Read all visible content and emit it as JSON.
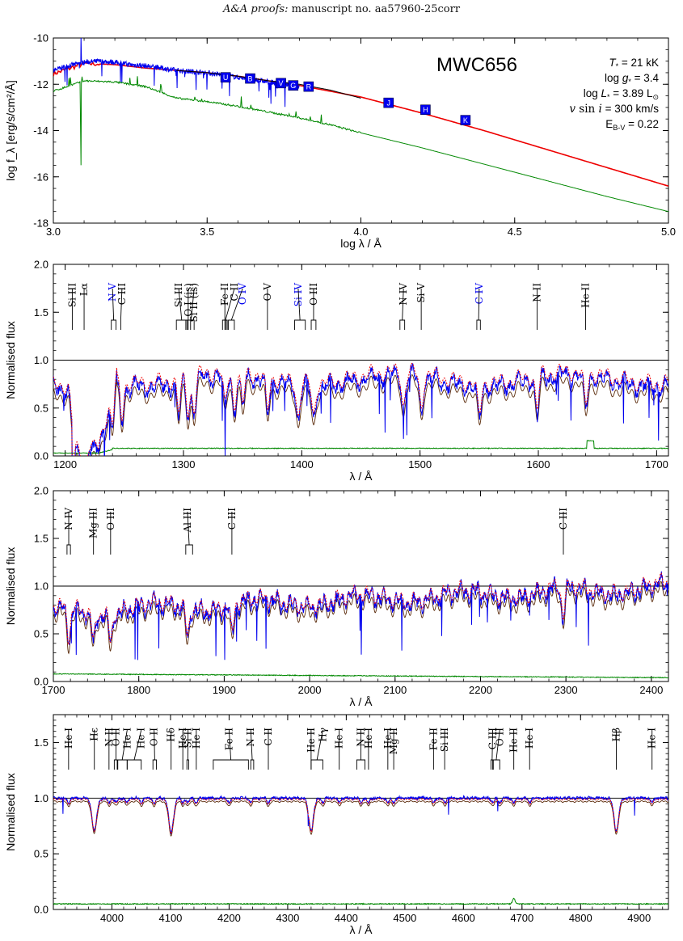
{
  "header": {
    "journal": "A&A proofs:",
    "manuscript": "manuscript no. aa57960-25corr"
  },
  "colors": {
    "observed": "#0000ee",
    "model": "#ee0000",
    "model_dotted": "#ee0000",
    "companion_or_alt": "#5a2a0a",
    "diff": "#008800",
    "black": "#000000"
  },
  "sed_panel": {
    "star": "MWC656",
    "params": [
      {
        "name": "T",
        "sub": "*",
        "value": " = 21 kK"
      },
      {
        "name": "log g",
        "sub": "*",
        "value": " = 3.4"
      },
      {
        "name": "log L",
        "sub": "*",
        "value": " = 3.89 L"
      },
      {
        "name": "v sin i",
        "sub": "",
        "value": " = 300 km/s"
      },
      {
        "name": "E",
        "sub": "B-V",
        "value": " = 0.22"
      }
    ]
  },
  "chart_data": [
    {
      "type": "line",
      "id": "sed",
      "xlabel": "log λ / Å",
      "ylabel": "log f_λ [erg/s/cm²/Å]",
      "xlim": [
        3.0,
        5.0
      ],
      "ylim": [
        -18,
        -10
      ],
      "xticks": [
        "3.0",
        "3.5",
        "4.0",
        "4.5",
        "5.0"
      ],
      "yticks": [
        "-18",
        "-16",
        "-14",
        "-12",
        "-10"
      ],
      "series": [
        {
          "color": "red",
          "x": [
            3.0,
            3.1,
            3.2,
            3.3,
            3.4,
            3.5,
            3.6,
            3.7,
            3.8,
            3.9,
            4.0,
            4.2,
            4.4,
            4.6,
            4.8,
            5.0
          ],
          "y": [
            -11.55,
            -11.1,
            -11.15,
            -11.3,
            -11.4,
            -11.5,
            -11.65,
            -11.85,
            -12.05,
            -12.3,
            -12.55,
            -13.25,
            -14.0,
            -14.8,
            -15.6,
            -16.4
          ]
        },
        {
          "color": "blue",
          "x": [
            3.0,
            3.05,
            3.1,
            3.15,
            3.2,
            3.25,
            3.3,
            3.35,
            3.4,
            3.45,
            3.5,
            3.55,
            3.6,
            3.65,
            3.7,
            3.75,
            3.8
          ],
          "y": [
            -11.4,
            -11.2,
            -11.05,
            -11.0,
            -11.05,
            -11.15,
            -11.2,
            -11.3,
            -11.4,
            -11.45,
            -11.5,
            -11.6,
            -11.7,
            -11.8,
            -11.9,
            -12.0,
            -12.1
          ]
        },
        {
          "color": "black",
          "x": [
            3.4,
            3.5,
            3.6,
            3.7,
            3.8,
            3.9,
            4.0
          ],
          "y": [
            -11.4,
            -11.5,
            -11.65,
            -11.85,
            -12.0,
            -12.25,
            -12.6
          ]
        },
        {
          "color": "green",
          "x": [
            3.0,
            3.1,
            3.2,
            3.3,
            3.4,
            3.5,
            3.6,
            3.7,
            3.8,
            3.9,
            4.0,
            4.2,
            4.4,
            4.6,
            4.8,
            5.0
          ],
          "y": [
            -12.3,
            -11.85,
            -11.9,
            -12.1,
            -12.6,
            -12.75,
            -12.95,
            -13.2,
            -13.45,
            -13.75,
            -14.1,
            -14.75,
            -15.45,
            -16.15,
            -16.85,
            -17.5
          ]
        }
      ],
      "photometry": [
        {
          "label": "U",
          "x": 3.56,
          "y": -11.7
        },
        {
          "label": "B",
          "x": 3.64,
          "y": -11.75
        },
        {
          "label": "V",
          "x": 3.74,
          "y": -11.95
        },
        {
          "label": "G",
          "x": 3.78,
          "y": -12.05
        },
        {
          "label": "R",
          "x": 3.83,
          "y": -12.1
        },
        {
          "label": "J",
          "x": 4.09,
          "y": -12.8
        },
        {
          "label": "H",
          "x": 4.21,
          "y": -13.1
        },
        {
          "label": "K",
          "x": 4.34,
          "y": -13.55
        }
      ]
    },
    {
      "type": "line",
      "id": "uv1",
      "xlabel": "λ / Å",
      "ylabel": "Normalised flux",
      "xlim": [
        1190,
        1710
      ],
      "ylim": [
        0.0,
        2.0
      ],
      "xticks": [
        "1200",
        "1300",
        "1400",
        "1500",
        "1600",
        "1700"
      ],
      "yticks": [
        "0.0",
        "0.5",
        "1.0",
        "1.5",
        "2.0"
      ],
      "labels": [
        {
          "text": "Si III",
          "x": 1206,
          "color": "black",
          "bracket": [
            1206,
            1206
          ]
        },
        {
          "text": "Lα",
          "x": 1216,
          "color": "black",
          "bracket": [
            1216,
            1216
          ]
        },
        {
          "text": "N V",
          "x": 1240,
          "color": "blue",
          "bracket": [
            1239,
            1243
          ]
        },
        {
          "text": "C III",
          "x": 1248,
          "color": "black",
          "bracket": [
            1247,
            1247
          ]
        },
        {
          "text": "Si III",
          "x": 1296,
          "color": "black",
          "bracket": [
            1294,
            1303
          ]
        },
        {
          "text": "O I (is)",
          "x": 1304,
          "color": "black",
          "bracket": [
            1302,
            1306
          ]
        },
        {
          "text": "Si II (is)",
          "x": 1309,
          "color": "black",
          "bracket": [
            1304,
            1309
          ]
        },
        {
          "text": "Fe II",
          "x": 1335,
          "color": "black",
          "bracket": [
            1333,
            1337
          ]
        },
        {
          "text": "C II",
          "x": 1343,
          "color": "black",
          "bracket": [
            1335,
            1336
          ]
        },
        {
          "text": "O IV",
          "x": 1350,
          "color": "blue",
          "bracket": [
            1338,
            1343
          ]
        },
        {
          "text": "O V",
          "x": 1371,
          "color": "black",
          "bracket": [
            1371,
            1371
          ]
        },
        {
          "text": "Si IV",
          "x": 1397,
          "color": "blue",
          "bracket": [
            1394,
            1403
          ]
        },
        {
          "text": "O III",
          "x": 1410,
          "color": "black",
          "bracket": [
            1408,
            1412
          ]
        },
        {
          "text": "N IV",
          "x": 1486,
          "color": "black",
          "bracket": [
            1483,
            1487
          ]
        },
        {
          "text": "Si V",
          "x": 1501,
          "color": "black",
          "bracket": [
            1501,
            1501
          ]
        },
        {
          "text": "C IV",
          "x": 1550,
          "color": "blue",
          "bracket": [
            1548,
            1551
          ]
        },
        {
          "text": "N II",
          "x": 1599,
          "color": "black",
          "bracket": [
            1599,
            1599
          ]
        },
        {
          "text": "He II",
          "x": 1640,
          "color": "black",
          "bracket": [
            1640,
            1640
          ]
        }
      ]
    },
    {
      "type": "line",
      "id": "uv2",
      "xlabel": "λ / Å",
      "ylabel": "Normalised flux",
      "xlim": [
        1700,
        2420
      ],
      "ylim": [
        0.0,
        2.0
      ],
      "xticks": [
        "1700",
        "1800",
        "1900",
        "2000",
        "2100",
        "2200",
        "2300",
        "2400"
      ],
      "yticks": [
        "0.0",
        "0.5",
        "1.0",
        "1.5",
        "2.0"
      ],
      "labels": [
        {
          "text": "N IV",
          "x": 1718,
          "color": "black",
          "bracket": [
            1716,
            1720
          ]
        },
        {
          "text": "Mg III",
          "x": 1747,
          "color": "black",
          "bracket": [
            1747,
            1747
          ]
        },
        {
          "text": "O III",
          "x": 1767,
          "color": "black",
          "bracket": [
            1767,
            1767
          ]
        },
        {
          "text": "Al III",
          "x": 1857,
          "color": "black",
          "bracket": [
            1855,
            1863
          ]
        },
        {
          "text": "C III",
          "x": 1909,
          "color": "black",
          "bracket": [
            1909,
            1909
          ]
        },
        {
          "text": "C III",
          "x": 2297,
          "color": "black",
          "bracket": [
            2297,
            2297
          ]
        }
      ]
    },
    {
      "type": "line",
      "id": "optical",
      "xlabel": "λ / Å",
      "ylabel": "Normalised flux",
      "xlim": [
        3900,
        4950
      ],
      "ylim": [
        0.0,
        1.75
      ],
      "xticks": [
        "4000",
        "4100",
        "4200",
        "4300",
        "4400",
        "4500",
        "4600",
        "4700",
        "4800",
        "4900"
      ],
      "yticks": [
        "0.0",
        "0.5",
        "1.0",
        "1.5"
      ],
      "labels": [
        {
          "text": "He I",
          "x": 3926,
          "color": "black",
          "bracket": [
            3926,
            3926
          ]
        },
        {
          "text": "Hε",
          "x": 3970,
          "color": "black",
          "bracket": [
            3970,
            3970
          ]
        },
        {
          "text": "N II",
          "x": 3995,
          "color": "black",
          "bracket": [
            3995,
            3995
          ]
        },
        {
          "text": "O II",
          "x": 4007,
          "color": "black",
          "bracket": [
            4004,
            4010
          ]
        },
        {
          "text": "He I",
          "x": 4026,
          "color": "black",
          "bracket": [
            4009,
            4026
          ]
        },
        {
          "text": "He I",
          "x": 4050,
          "color": "black",
          "bracket": [
            4026,
            4050
          ]
        },
        {
          "text": "O II",
          "x": 4072,
          "color": "black",
          "bracket": [
            4070,
            4076
          ]
        },
        {
          "text": "Hδ",
          "x": 4101,
          "color": "black",
          "bracket": [
            4101,
            4101
          ]
        },
        {
          "text": "He I",
          "x": 4121,
          "color": "black",
          "bracket": [
            4121,
            4121
          ]
        },
        {
          "text": "Si II",
          "x": 4130,
          "color": "black",
          "bracket": [
            4128,
            4131
          ]
        },
        {
          "text": "He I",
          "x": 4144,
          "color": "black",
          "bracket": [
            4144,
            4144
          ]
        },
        {
          "text": "Fe II",
          "x": 4200,
          "color": "black",
          "bracket": [
            4173,
            4233
          ]
        },
        {
          "text": "N II",
          "x": 4237,
          "color": "black",
          "bracket": [
            4237,
            4242
          ]
        },
        {
          "text": "C II",
          "x": 4267,
          "color": "black",
          "bracket": [
            4267,
            4267
          ]
        },
        {
          "text": "He II",
          "x": 4340,
          "color": "black",
          "bracket": [
            4340,
            4340
          ]
        },
        {
          "text": "Hγ",
          "x": 4360,
          "color": "black",
          "bracket": [
            4340,
            4360
          ]
        },
        {
          "text": "He I",
          "x": 4388,
          "color": "black",
          "bracket": [
            4388,
            4388
          ]
        },
        {
          "text": "N II",
          "x": 4425,
          "color": "black",
          "bracket": [
            4418,
            4432
          ]
        },
        {
          "text": "He I",
          "x": 4438,
          "color": "black",
          "bracket": [
            4438,
            4438
          ]
        },
        {
          "text": "He I",
          "x": 4471,
          "color": "black",
          "bracket": [
            4471,
            4471
          ]
        },
        {
          "text": "Mg II",
          "x": 4481,
          "color": "black",
          "bracket": [
            4481,
            4481
          ]
        },
        {
          "text": "Fe II",
          "x": 4549,
          "color": "black",
          "bracket": [
            4549,
            4549
          ]
        },
        {
          "text": "Si III",
          "x": 4568,
          "color": "black",
          "bracket": [
            4568,
            4568
          ]
        },
        {
          "text": "C III",
          "x": 4650,
          "color": "black",
          "bracket": [
            4647,
            4651
          ]
        },
        {
          "text": "O II",
          "x": 4662,
          "color": "black",
          "bracket": [
            4650,
            4662
          ]
        },
        {
          "text": "He II",
          "x": 4686,
          "color": "black",
          "bracket": [
            4686,
            4686
          ]
        },
        {
          "text": "He I",
          "x": 4713,
          "color": "black",
          "bracket": [
            4713,
            4713
          ]
        },
        {
          "text": "Hβ",
          "x": 4861,
          "color": "black",
          "bracket": [
            4861,
            4861
          ]
        },
        {
          "text": "He I",
          "x": 4922,
          "color": "black",
          "bracket": [
            4922,
            4922
          ]
        }
      ]
    }
  ]
}
